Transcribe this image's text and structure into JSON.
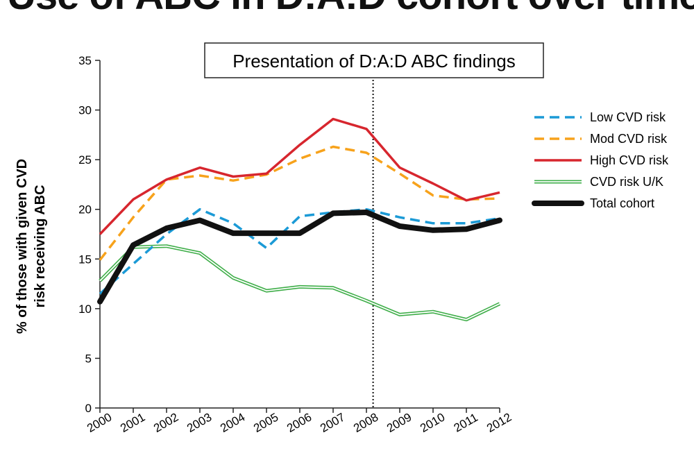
{
  "page": {
    "title": "Use of ABC in D:A:D cohort over time"
  },
  "chart_data": {
    "type": "line",
    "title": "Use of ABC in D:A:D cohort over time",
    "xlabel": "",
    "ylabel": [
      "% of those with given CVD",
      "risk receiving ABC"
    ],
    "categories": [
      "2000",
      "2001",
      "2002",
      "2003",
      "2004",
      "2005",
      "2006",
      "2007",
      "2008",
      "2009",
      "2010",
      "2011",
      "2012"
    ],
    "ylim": [
      0,
      35
    ],
    "yticks": [
      0,
      5,
      10,
      15,
      20,
      25,
      30,
      35
    ],
    "grid": false,
    "legend_position": "right",
    "annotation": {
      "text": "Presentation of D:A:D ABC findings",
      "x": 2008.2
    },
    "series": [
      {
        "name": "Low CVD risk",
        "color": "#1b9ad6",
        "style": "dashed",
        "values": [
          11.5,
          14.5,
          17.5,
          20.0,
          18.6,
          16.1,
          19.3,
          19.7,
          20.0,
          19.2,
          18.6,
          18.6,
          19.1
        ]
      },
      {
        "name": "Mod CVD risk",
        "color": "#f7a21b",
        "style": "dashed",
        "values": [
          14.9,
          19.2,
          23.0,
          23.4,
          22.9,
          23.5,
          25.1,
          26.3,
          25.7,
          23.6,
          21.4,
          21.0,
          21.1
        ]
      },
      {
        "name": "High CVD risk",
        "color": "#d7262e",
        "style": "solid",
        "values": [
          17.5,
          21.0,
          23.0,
          24.2,
          23.3,
          23.6,
          26.5,
          29.1,
          28.1,
          24.2,
          22.6,
          20.9,
          21.7
        ]
      },
      {
        "name": "CVD risk U/K",
        "color": "#3fae49",
        "style": "double",
        "values": [
          12.8,
          16.2,
          16.3,
          15.6,
          13.1,
          11.8,
          12.2,
          12.1,
          10.8,
          9.4,
          9.7,
          8.9,
          10.5
        ]
      },
      {
        "name": "Total cohort",
        "color": "#111111",
        "style": "thick",
        "values": [
          10.7,
          16.4,
          18.1,
          18.9,
          17.6,
          17.6,
          17.6,
          19.6,
          19.7,
          18.3,
          17.9,
          18.0,
          18.9
        ]
      }
    ]
  }
}
